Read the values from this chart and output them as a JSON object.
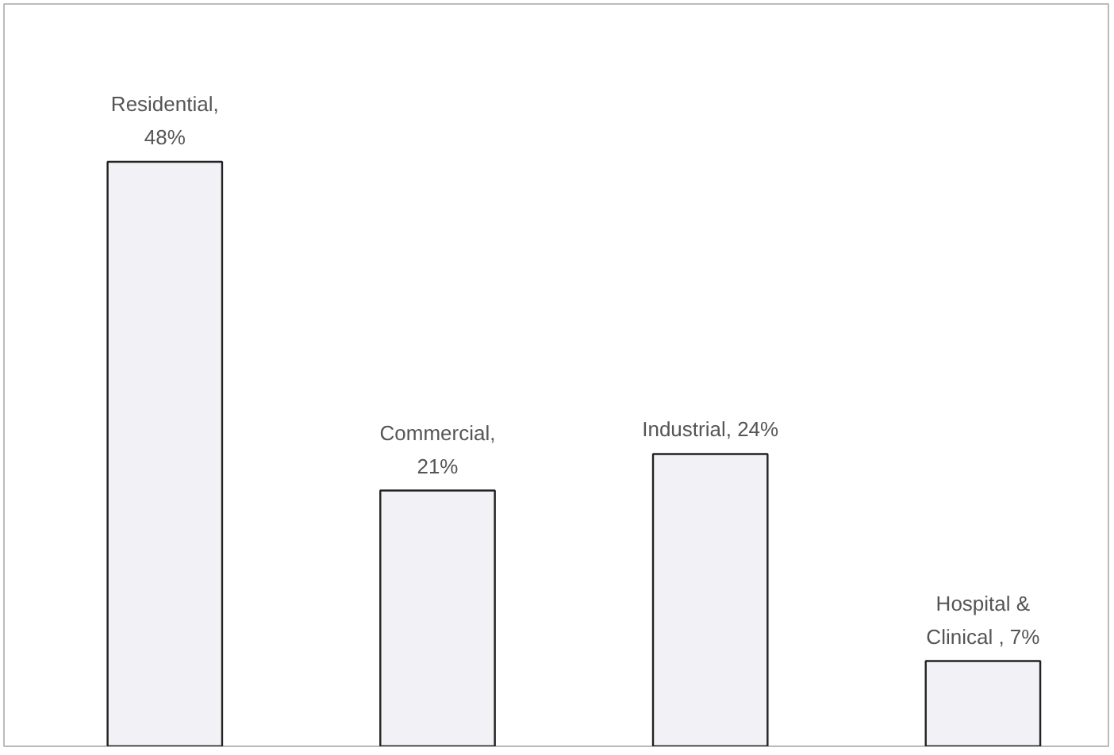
{
  "chart_data": {
    "type": "bar",
    "categories": [
      null,
      null,
      null,
      null
    ],
    "values": [
      48,
      21,
      24,
      7
    ],
    "value_labels": [
      "Residential,\n48%",
      "Commercial,\n21%",
      "Industrial, 24%",
      "Hospital &\nClinical , 7%"
    ],
    "color": "#f2f2f6",
    "grid": false,
    "tick_labels": false
  }
}
